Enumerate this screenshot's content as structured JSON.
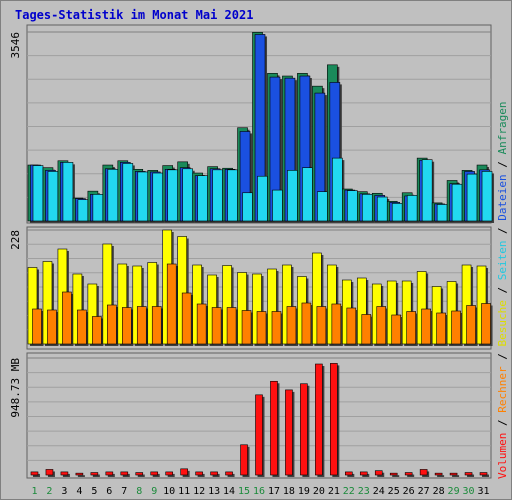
{
  "chart_data": {
    "title": "Tages-Statistik im Monat Mai 2021",
    "type": "bar",
    "categories": [
      "1",
      "2",
      "3",
      "4",
      "5",
      "6",
      "7",
      "8",
      "9",
      "10",
      "11",
      "12",
      "13",
      "14",
      "15",
      "16",
      "17",
      "18",
      "19",
      "20",
      "21",
      "22",
      "23",
      "24",
      "25",
      "26",
      "27",
      "28",
      "29",
      "30",
      "31"
    ],
    "weekend_days": [
      "1",
      "2",
      "8",
      "9",
      "15",
      "16",
      "22",
      "23",
      "29",
      "30"
    ],
    "panels": [
      {
        "id": "top",
        "max_label": "3546",
        "ylim": [
          0,
          3546
        ],
        "series": [
          {
            "name": "Anfragen",
            "color": "#1a8a5a",
            "values": [
              1050,
              1000,
              1130,
              430,
              560,
              1050,
              1130,
              970,
              950,
              1040,
              1110,
              900,
              1020,
              990,
              1750,
              3540,
              2770,
              2720,
              2770,
              2530,
              2930,
              600,
              550,
              520,
              370,
              530,
              1180,
              340,
              760,
              950,
              1050
            ]
          },
          {
            "name": "Dateien",
            "color": "#1a50e0",
            "values": [
              1050,
              950,
              1100,
              420,
              500,
              980,
              1100,
              930,
              920,
              970,
              1000,
              850,
              980,
              970,
              1680,
              3500,
              2700,
              2680,
              2720,
              2400,
              2600,
              580,
              510,
              480,
              350,
              470,
              1140,
              320,
              700,
              930,
              960
            ]
          },
          {
            "name": "Seiten",
            "color": "#22d8f0",
            "values": [
              1040,
              930,
              1100,
              400,
              500,
              970,
              1080,
              920,
              900,
              960,
              980,
              850,
              960,
              960,
              530,
              840,
              580,
              950,
              1000,
              550,
              1180,
              570,
              500,
              450,
              330,
              480,
              1150,
              310,
              690,
              880,
              930
            ]
          }
        ]
      },
      {
        "id": "middle",
        "max_label": "228",
        "ylim": [
          0,
          228
        ],
        "series": [
          {
            "name": "Besuche",
            "color": "#ffff00",
            "values": [
              153,
              165,
              190,
              140,
              120,
              200,
              160,
              156,
              163,
              228,
              215,
              158,
              138,
              157,
              143,
              140,
              150,
              158,
              135,
              182,
              158,
              128,
              132,
              120,
              126,
              126,
              145,
              115,
              125,
              158,
              156
            ]
          },
          {
            "name": "Rechner",
            "color": "#ff8000",
            "values": [
              70,
              68,
              104,
              68,
              55,
              78,
              73,
              75,
              75,
              160,
              102,
              80,
              73,
              73,
              67,
              65,
              65,
              75,
              82,
              75,
              80,
              72,
              59,
              75,
              58,
              65,
              70,
              62,
              66,
              77,
              81
            ]
          }
        ]
      },
      {
        "id": "bottom",
        "max_label": "948.73 MB",
        "ylim": [
          0,
          948.73
        ],
        "series": [
          {
            "name": "Volumen",
            "color": "#ff1010",
            "values": [
              25,
              45,
              25,
              15,
              20,
              25,
              25,
              20,
              25,
              25,
              50,
              25,
              25,
              25,
              245,
              650,
              760,
              690,
              740,
              900,
              905,
              25,
              25,
              35,
              15,
              20,
              45,
              15,
              15,
              20,
              20
            ]
          }
        ]
      }
    ],
    "legend_right": [
      "Volumen",
      "/",
      "Rechner",
      "/",
      "Besuche",
      "/",
      "Seiten",
      "/",
      "Dateien",
      "/",
      "Anfragen"
    ],
    "legend_colors": [
      "#ff1010",
      "#000000",
      "#ff8000",
      "#000000",
      "#dddd00",
      "#000000",
      "#22c8e0",
      "#000000",
      "#1a50e0",
      "#000000",
      "#1a8a5a"
    ]
  }
}
